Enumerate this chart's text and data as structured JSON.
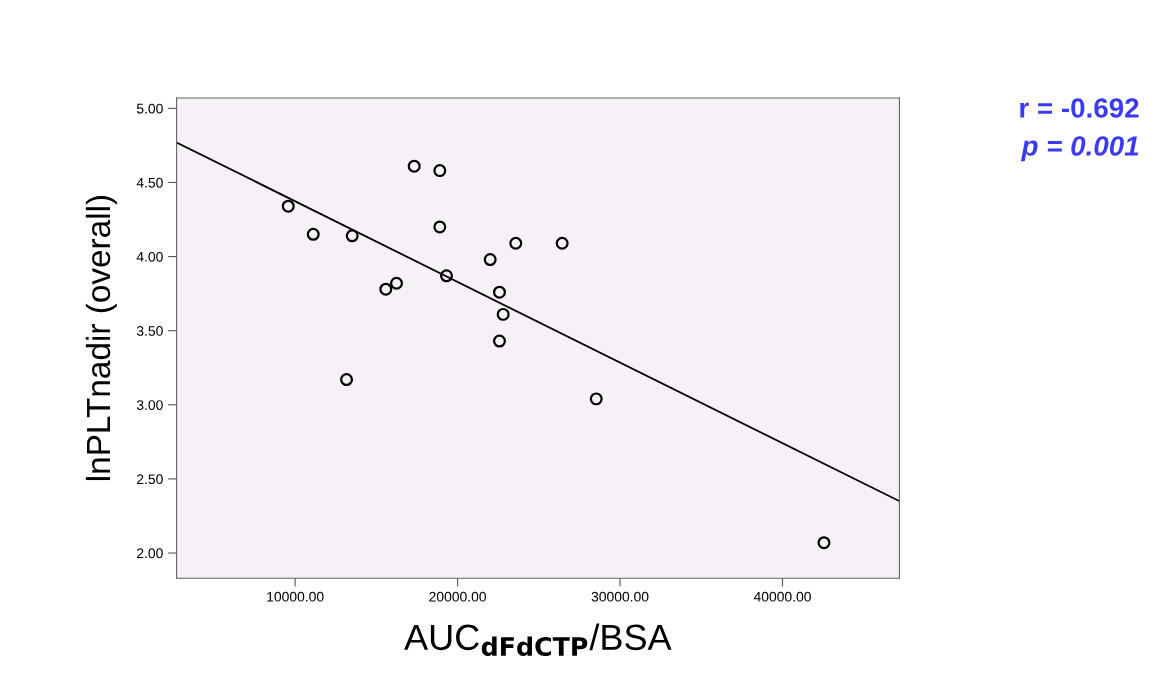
{
  "chart_data": {
    "type": "scatter",
    "xlabel": "AUC$_{dFdCTP}$/BSA",
    "ylabel": "lnPLTnadir (overall)",
    "annotations": [
      "r = -0.692",
      "p = 0.001"
    ],
    "series": [
      {
        "color": "#000000",
        "marker": "circle",
        "x": [
          9575,
          11114,
          13514,
          17329,
          18905,
          18905,
          15582,
          16240,
          19317,
          22006,
          23582,
          26437,
          22578,
          22806,
          22578,
          13163,
          28535,
          42554
        ],
        "values": [
          4.34,
          4.15,
          4.14,
          4.61,
          4.58,
          4.2,
          3.78,
          3.82,
          3.87,
          3.98,
          4.09,
          4.09,
          3.76,
          3.61,
          3.43,
          3.17,
          3.04,
          2.07
        ]
      },
      {
        "type": "line",
        "color": "#000000",
        "marker": "none",
        "x": [
          2700,
          47200
        ],
        "values": [
          4.77,
          2.35
        ]
      }
    ],
    "xlim": [
      2700,
      47200
    ],
    "ylim": [
      1.83,
      5.07
    ],
    "xticks": [
      {
        "value": 10000,
        "label": "10000.00"
      },
      {
        "value": 20000,
        "label": "20000.00"
      },
      {
        "value": 30000,
        "label": "30000.00"
      },
      {
        "value": 40000,
        "label": "40000.00"
      }
    ],
    "yticks": [
      {
        "value": 2,
        "label": "2.00"
      },
      {
        "value": 2.5,
        "label": "2.50"
      },
      {
        "value": 3,
        "label": "3.00"
      },
      {
        "value": 3.5,
        "label": "3.50"
      },
      {
        "value": 4,
        "label": "4.00"
      },
      {
        "value": 4.5,
        "label": "4.50"
      },
      {
        "value": 5,
        "label": "5.00"
      }
    ],
    "grid": false,
    "legend": false
  }
}
